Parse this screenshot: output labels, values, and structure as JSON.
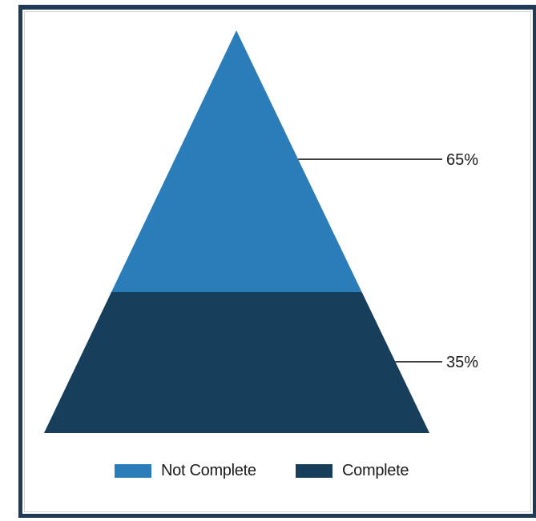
{
  "chart_data": {
    "type": "pyramid",
    "title": "",
    "categories": [
      "Not Complete",
      "Complete"
    ],
    "values": [
      65,
      35
    ],
    "data_labels": [
      "65%",
      "35%"
    ],
    "colors": [
      "#2a7db9",
      "#173f5c"
    ],
    "legend": {
      "placement": "bottom",
      "entries": [
        "Not Complete",
        "Complete"
      ]
    },
    "grid": false
  }
}
